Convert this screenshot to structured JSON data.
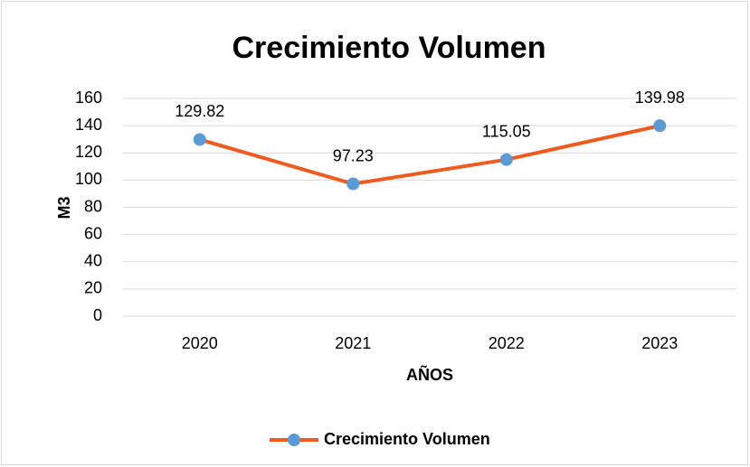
{
  "chart_data": {
    "type": "line",
    "title": "Crecimiento Volumen",
    "x_label": "AÑOS",
    "y_label": "M3",
    "categories": [
      "2020",
      "2021",
      "2022",
      "2023"
    ],
    "series": [
      {
        "name": "Crecimiento Volumen",
        "color": "#f05a1c",
        "marker_color": "#5b9bd5",
        "values": [
          129.82,
          97.23,
          115.05,
          139.98
        ]
      }
    ],
    "ylim": [
      0,
      160
    ],
    "yticks": [
      0,
      20,
      40,
      60,
      80,
      100,
      120,
      140,
      160
    ],
    "grid": true,
    "legend": "bottom",
    "data_labels": true
  }
}
